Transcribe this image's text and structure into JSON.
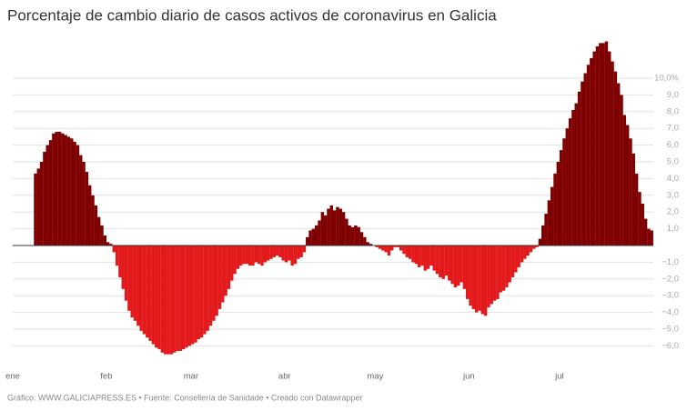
{
  "chart_data": {
    "type": "bar",
    "title": "Porcentaje de cambio diario de casos activos de coronavirus en Galicia",
    "source": "Gráfico: WWW.GALICIAPRESS.ES • Fuente: Consellería de Sanidade • Creado con Datawrapper",
    "positive_color": "#7f0000",
    "negative_color": "#e31a1c",
    "categories": [
      "ene",
      null,
      null,
      null,
      null,
      null,
      null,
      null,
      null,
      null,
      null,
      null,
      null,
      null,
      null,
      null,
      null,
      null,
      null,
      null,
      null,
      null,
      null,
      null,
      null,
      null,
      null,
      null,
      null,
      null,
      null,
      "feb",
      null,
      null,
      null,
      null,
      null,
      null,
      null,
      null,
      null,
      null,
      null,
      null,
      null,
      null,
      null,
      null,
      null,
      null,
      null,
      null,
      null,
      null,
      null,
      null,
      null,
      null,
      null,
      "mar",
      null,
      null,
      null,
      null,
      null,
      null,
      null,
      null,
      null,
      null,
      null,
      null,
      null,
      null,
      null,
      null,
      null,
      null,
      null,
      null,
      null,
      null,
      null,
      null,
      null,
      null,
      null,
      null,
      null,
      null,
      "abr",
      null,
      null,
      null,
      null,
      null,
      null,
      null,
      null,
      null,
      null,
      null,
      null,
      null,
      null,
      null,
      null,
      null,
      null,
      null,
      null,
      null,
      null,
      null,
      null,
      null,
      null,
      null,
      null,
      null,
      "may",
      null,
      null,
      null,
      null,
      null,
      null,
      null,
      null,
      null,
      null,
      null,
      null,
      null,
      null,
      null,
      null,
      null,
      null,
      null,
      null,
      null,
      null,
      null,
      null,
      null,
      null,
      null,
      null,
      null,
      null,
      "jun",
      null,
      null,
      null,
      null,
      null,
      null,
      null,
      null,
      null,
      null,
      null,
      null,
      null,
      null,
      null,
      null,
      null,
      null,
      null,
      null,
      null,
      null,
      null,
      null,
      null,
      null,
      null,
      null,
      null,
      "jul",
      null,
      null,
      null,
      null,
      null,
      null,
      null,
      null,
      null,
      null,
      null,
      null,
      null,
      null,
      null,
      null,
      null,
      null,
      null,
      null,
      null,
      null,
      null,
      null,
      null,
      null,
      null,
      null,
      null,
      null
    ],
    "values": [
      null,
      null,
      null,
      null,
      null,
      null,
      null,
      4.3,
      4.6,
      5.0,
      5.6,
      6.0,
      6.3,
      6.7,
      6.8,
      6.8,
      6.7,
      6.6,
      6.5,
      6.4,
      6.2,
      6.0,
      5.4,
      5.0,
      4.4,
      3.6,
      3.0,
      2.4,
      1.7,
      1.2,
      0.6,
      0.2,
      0.1,
      -0.4,
      -1.2,
      -1.9,
      -2.6,
      -3.3,
      -3.9,
      -4.3,
      -4.5,
      -4.8,
      -5.1,
      -5.3,
      -5.5,
      -5.7,
      -5.9,
      -6.1,
      -6.2,
      -6.4,
      -6.5,
      -6.5,
      -6.5,
      -6.4,
      -6.3,
      -6.3,
      -6.2,
      -6.1,
      -6.0,
      -5.9,
      -5.8,
      -5.6,
      -5.5,
      -5.3,
      -5.1,
      -4.8,
      -4.5,
      -4.2,
      -3.8,
      -3.4,
      -3.0,
      -2.6,
      -2.1,
      -1.7,
      -1.4,
      -1.2,
      -1.1,
      -1.1,
      -1.2,
      -1.2,
      -1.0,
      -1.1,
      -1.2,
      -1.0,
      -0.9,
      -0.8,
      -0.7,
      -0.6,
      -0.7,
      -0.9,
      -1.0,
      -0.9,
      -1.2,
      -1.1,
      -0.8,
      -0.7,
      -0.4,
      0.5,
      0.9,
      1.0,
      1.2,
      1.5,
      2.0,
      1.8,
      2.2,
      2.4,
      2.1,
      2.3,
      2.2,
      2.0,
      1.6,
      1.2,
      1.1,
      1.2,
      1.1,
      0.8,
      0.5,
      0.2,
      0.1,
      0.0,
      -0.1,
      -0.2,
      -0.3,
      -0.4,
      -0.6,
      -0.3,
      -0.1,
      -0.1,
      -0.3,
      -0.5,
      -0.7,
      -0.8,
      -1.0,
      -1.1,
      -1.3,
      -1.2,
      -1.5,
      -1.4,
      -1.2,
      -1.5,
      -1.7,
      -1.9,
      -2.0,
      -1.8,
      -2.1,
      -2.3,
      -2.5,
      -2.4,
      -2.2,
      -2.6,
      -3.2,
      -3.6,
      -3.8,
      -4.0,
      -3.9,
      -4.1,
      -4.2,
      -3.7,
      -3.5,
      -3.3,
      -3.2,
      -2.8,
      -2.7,
      -2.5,
      -2.2,
      -1.9,
      -1.6,
      -1.3,
      -1.0,
      -0.8,
      -0.6,
      -0.4,
      -0.2,
      -0.1,
      0.4,
      1.2,
      1.9,
      2.7,
      3.5,
      4.3,
      5.0,
      5.7,
      6.4,
      7.0,
      7.6,
      8.1,
      8.5,
      9.2,
      9.8,
      10.3,
      10.8,
      11.2,
      11.6,
      11.9,
      12.1,
      12.1,
      12.2,
      11.6,
      11.0,
      10.4,
      9.7,
      9.0,
      7.8,
      7.2,
      6.4,
      5.5,
      4.3,
      3.2,
      2.5,
      1.6,
      1.0,
      0.9
    ],
    "ylim": [
      -7,
      12.5
    ],
    "yticks": [
      {
        "value": 10,
        "label": "10,0%"
      },
      {
        "value": 9,
        "label": "9,0"
      },
      {
        "value": 8,
        "label": "8,0"
      },
      {
        "value": 7,
        "label": "7,0"
      },
      {
        "value": 6,
        "label": "6,0"
      },
      {
        "value": 5,
        "label": "5,0"
      },
      {
        "value": 4,
        "label": "4,0"
      },
      {
        "value": 3,
        "label": "3,0"
      },
      {
        "value": 2,
        "label": "2,0"
      },
      {
        "value": 1,
        "label": "1,0"
      },
      {
        "value": -1,
        "label": "−1,0"
      },
      {
        "value": -2,
        "label": "−2,0"
      },
      {
        "value": -3,
        "label": "−3,0"
      },
      {
        "value": -4,
        "label": "−4,0"
      },
      {
        "value": -5,
        "label": "−5,0"
      },
      {
        "value": -6,
        "label": "−6,0"
      }
    ],
    "grid": true
  }
}
